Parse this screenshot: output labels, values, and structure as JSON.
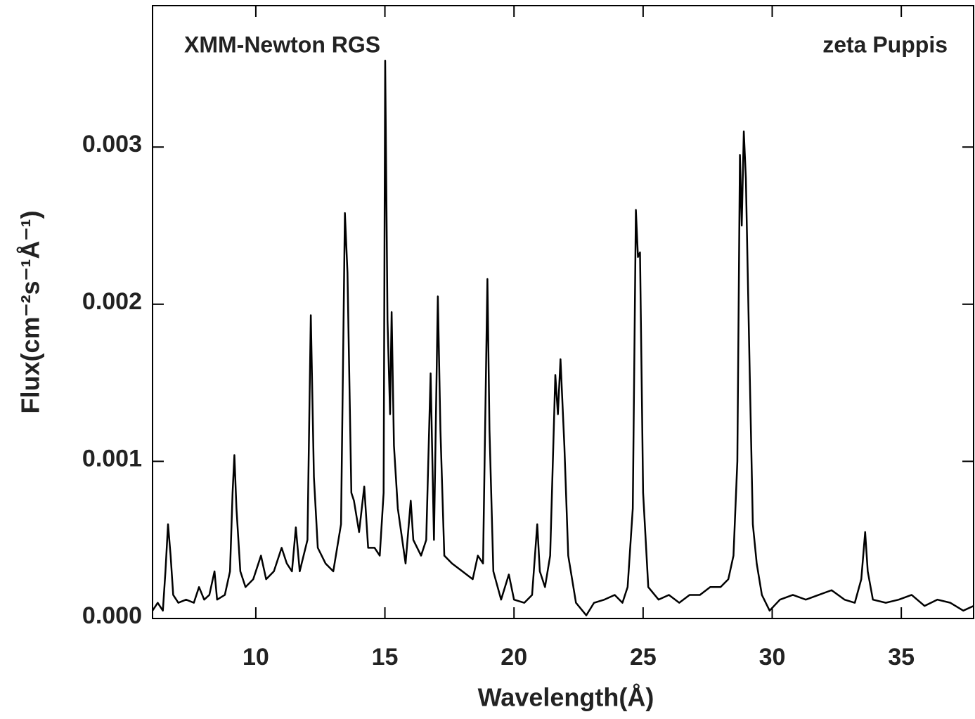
{
  "chart_data": {
    "type": "line",
    "annotations": [
      "XMM-Newton RGS",
      "zeta Puppis"
    ],
    "xlabel": "Wavelength(Å)",
    "ylabel": "Flux(cm⁻²s⁻¹Å⁻¹)",
    "color": "#000000",
    "xlim": [
      6,
      37.8
    ],
    "xticks": [
      10,
      15,
      20,
      25,
      30,
      35
    ],
    "ylim": [
      0,
      0.0039
    ],
    "yticks": [
      {
        "value": 0,
        "label": "0.000"
      },
      0.001,
      0.002,
      0.003
    ],
    "x": [
      6.0,
      6.2,
      6.4,
      6.5,
      6.6,
      6.7,
      6.8,
      7.0,
      7.3,
      7.6,
      7.8,
      8.0,
      8.2,
      8.4,
      8.5,
      8.8,
      9.0,
      9.1,
      9.17,
      9.25,
      9.4,
      9.6,
      9.9,
      10.2,
      10.4,
      10.7,
      11.0,
      11.2,
      11.4,
      11.55,
      11.7,
      12.0,
      12.13,
      12.25,
      12.4,
      12.7,
      13.0,
      13.3,
      13.45,
      13.55,
      13.7,
      13.8,
      14.0,
      14.2,
      14.35,
      14.6,
      14.8,
      14.95,
      15.01,
      15.1,
      15.2,
      15.26,
      15.35,
      15.5,
      15.8,
      16.0,
      16.1,
      16.4,
      16.6,
      16.77,
      16.9,
      17.05,
      17.15,
      17.3,
      17.6,
      18.0,
      18.4,
      18.6,
      18.8,
      18.97,
      19.05,
      19.2,
      19.5,
      19.8,
      20.0,
      20.4,
      20.7,
      20.9,
      21.0,
      21.2,
      21.4,
      21.6,
      21.7,
      21.8,
      21.95,
      22.1,
      22.4,
      22.8,
      23.1,
      23.5,
      23.9,
      24.2,
      24.4,
      24.6,
      24.72,
      24.8,
      24.88,
      25.0,
      25.2,
      25.6,
      26.0,
      26.4,
      26.8,
      27.2,
      27.6,
      28.0,
      28.3,
      28.5,
      28.65,
      28.75,
      28.82,
      28.9,
      28.98,
      29.1,
      29.25,
      29.4,
      29.6,
      29.9,
      30.3,
      30.8,
      31.3,
      31.8,
      32.3,
      32.8,
      33.2,
      33.45,
      33.6,
      33.7,
      33.9,
      34.4,
      34.9,
      35.4,
      35.9,
      36.4,
      36.9,
      37.4,
      37.8
    ],
    "values": [
      5e-05,
      0.0001,
      5e-05,
      0.0003,
      0.0006,
      0.0004,
      0.00015,
      0.0001,
      0.00012,
      0.0001,
      0.0002,
      0.00012,
      0.00015,
      0.0003,
      0.00012,
      0.00015,
      0.0003,
      0.0008,
      0.00104,
      0.0007,
      0.0003,
      0.0002,
      0.00025,
      0.0004,
      0.00025,
      0.0003,
      0.00045,
      0.00035,
      0.0003,
      0.00058,
      0.0003,
      0.0005,
      0.00193,
      0.0009,
      0.00045,
      0.00035,
      0.0003,
      0.0006,
      0.00258,
      0.0022,
      0.0008,
      0.00075,
      0.00055,
      0.00084,
      0.00045,
      0.00045,
      0.0004,
      0.0008,
      0.00355,
      0.0019,
      0.0013,
      0.00195,
      0.0011,
      0.0007,
      0.00035,
      0.00075,
      0.0005,
      0.0004,
      0.0005,
      0.00156,
      0.0005,
      0.00205,
      0.0012,
      0.0004,
      0.00035,
      0.0003,
      0.00025,
      0.0004,
      0.00035,
      0.00216,
      0.0012,
      0.0003,
      0.00012,
      0.00028,
      0.00012,
      0.0001,
      0.00015,
      0.0006,
      0.0003,
      0.0002,
      0.0004,
      0.00155,
      0.0013,
      0.00165,
      0.0011,
      0.0004,
      0.0001,
      2e-05,
      0.0001,
      0.00012,
      0.00015,
      0.0001,
      0.0002,
      0.0007,
      0.0026,
      0.0023,
      0.00233,
      0.0008,
      0.0002,
      0.00012,
      0.00015,
      0.0001,
      0.00015,
      0.00015,
      0.0002,
      0.0002,
      0.00025,
      0.0004,
      0.001,
      0.00295,
      0.0025,
      0.0031,
      0.0028,
      0.0018,
      0.0006,
      0.00035,
      0.00015,
      5e-05,
      0.00012,
      0.00015,
      0.00012,
      0.00015,
      0.00018,
      0.00012,
      0.0001,
      0.00025,
      0.00055,
      0.0003,
      0.00012,
      0.0001,
      0.00012,
      0.00015,
      8e-05,
      0.00012,
      0.0001,
      5e-05,
      8e-05
    ]
  }
}
